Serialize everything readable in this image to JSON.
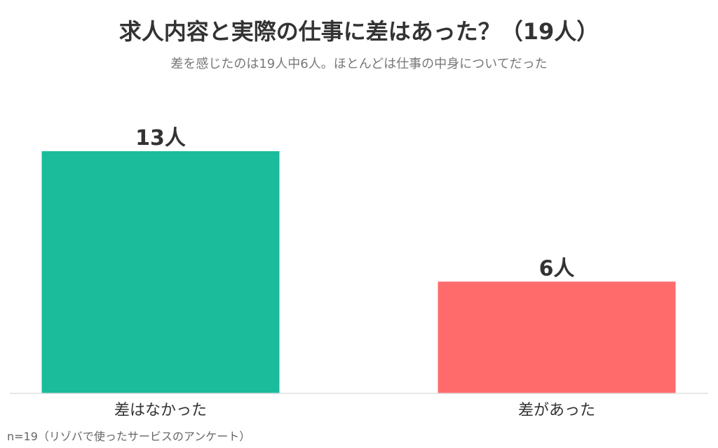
{
  "chart_data": {
    "type": "bar",
    "title": "求人内容と実際の仕事に差はあった？（19人）",
    "subtitle": "差を感じたのは19人中6人。ほとんどは仕事の中身についてだった",
    "categories": [
      "差はなかった",
      "差があった"
    ],
    "values": [
      13,
      6
    ],
    "data_labels": [
      "13人",
      "6人"
    ],
    "colors": [
      "#1ABC9C",
      "#FF6B6B"
    ],
    "ylim": [
      0,
      13
    ],
    "grid": false,
    "legend": "none",
    "xlabel": "",
    "ylabel": ""
  },
  "footnote": "n=19（リゾバで使ったサービスのアンケート）"
}
